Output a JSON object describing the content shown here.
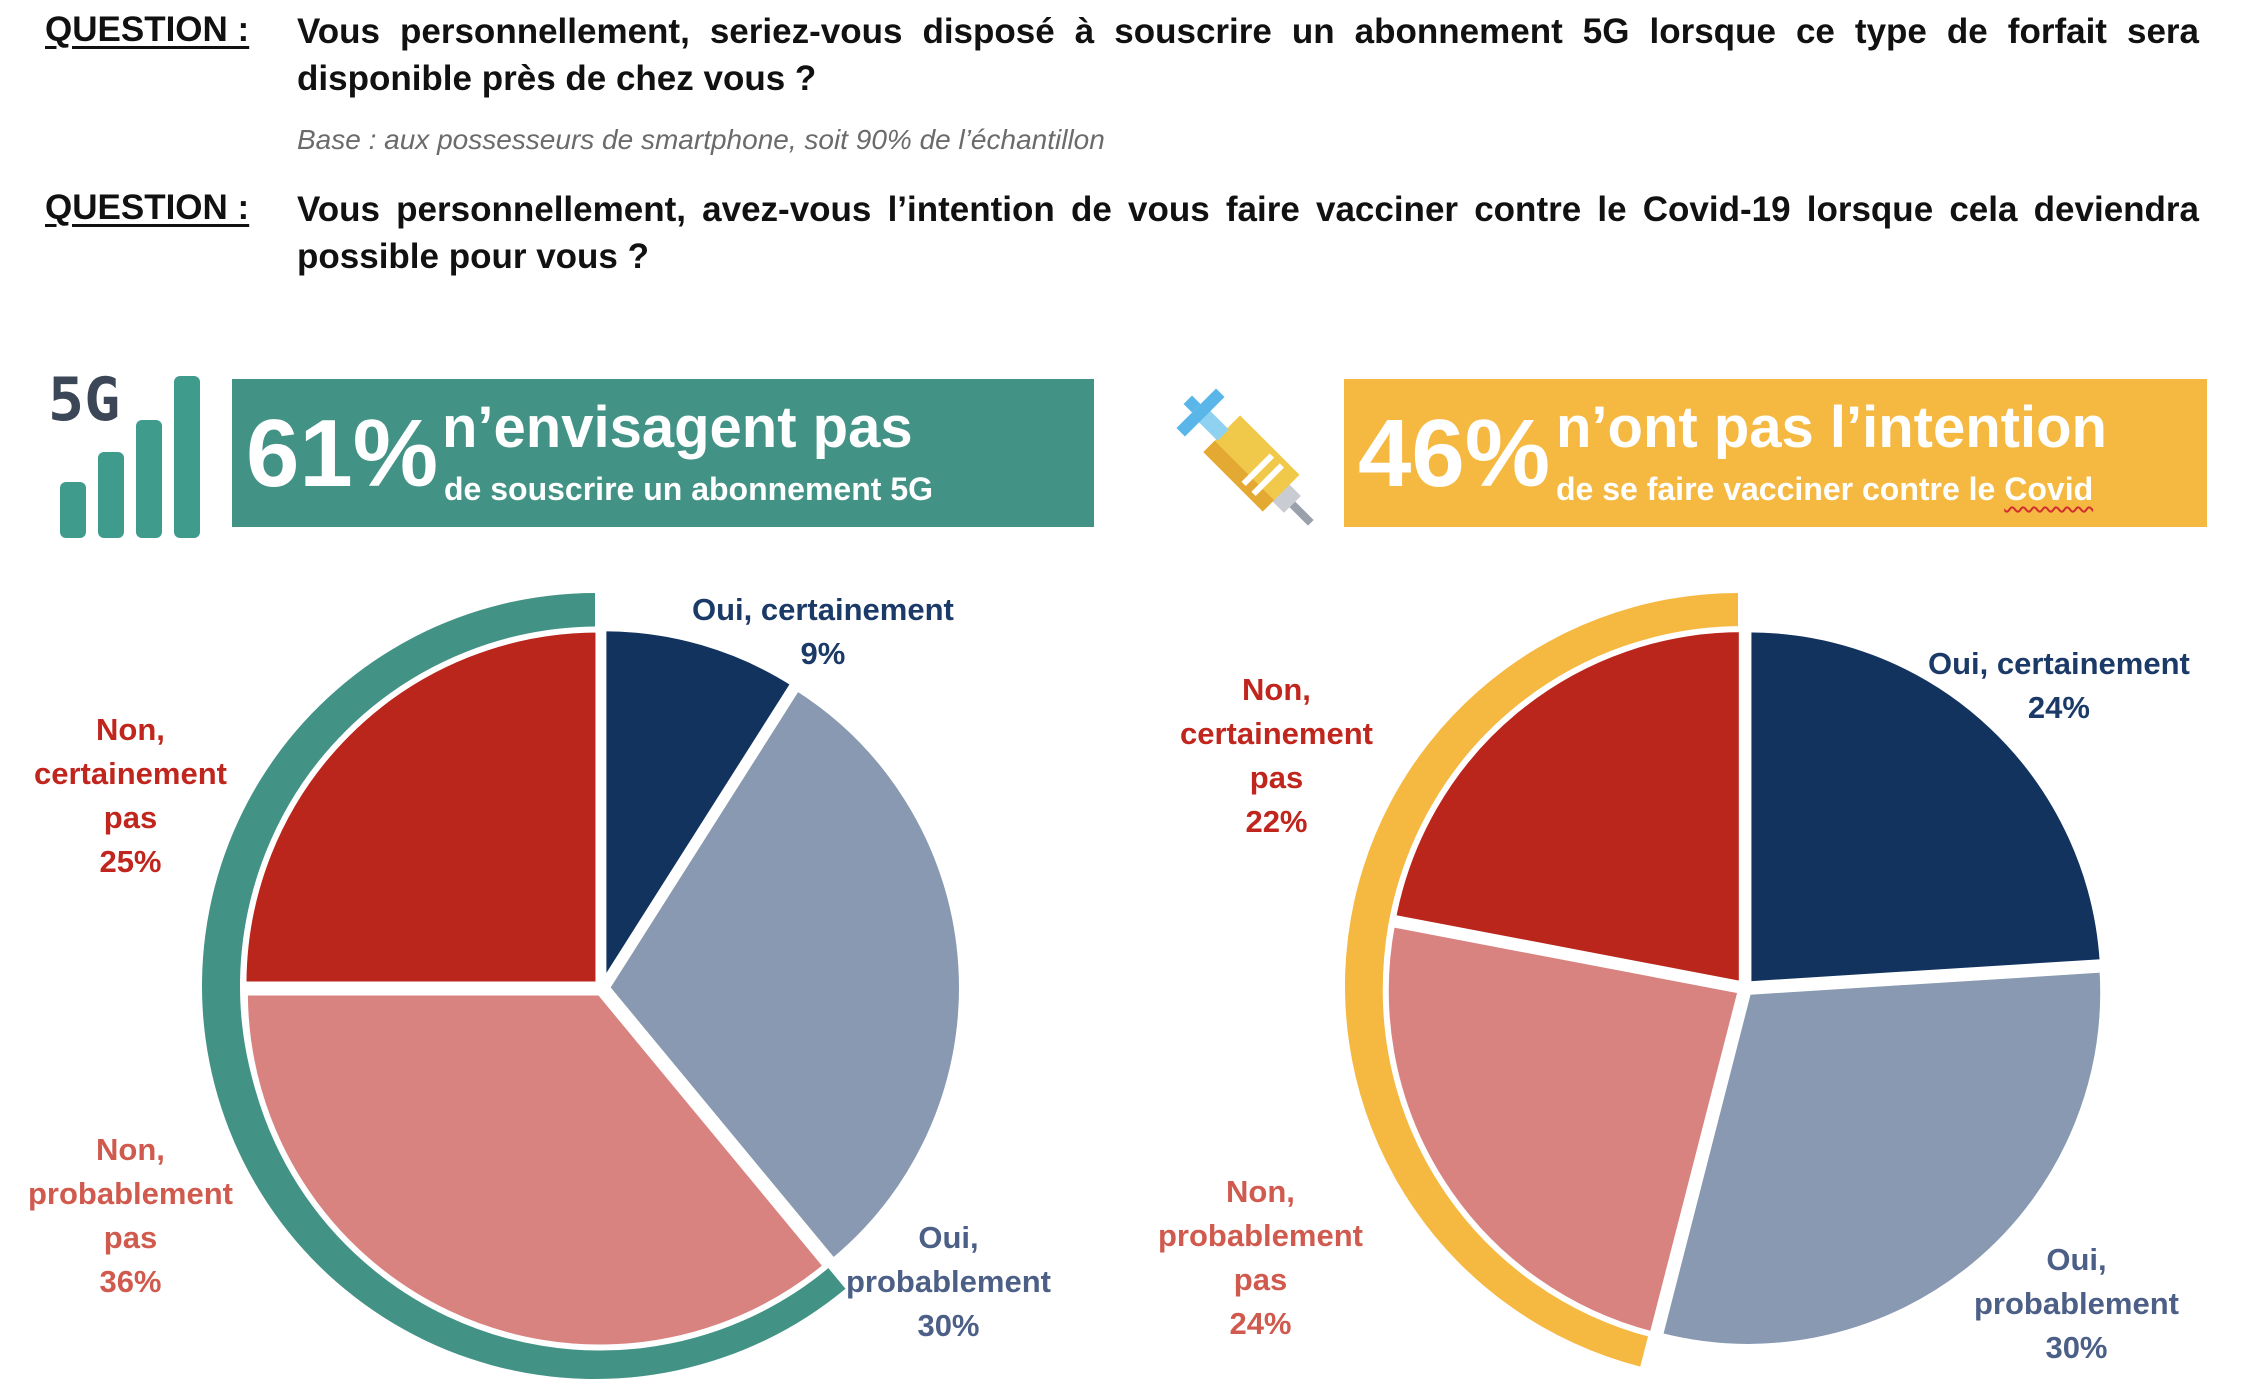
{
  "questions": [
    {
      "label": "QUESTION :",
      "text": "Vous personnellement, seriez-vous disposé à souscrire un abonnement 5G lorsque ce type de forfait sera disponible près de chez vous ?",
      "base": "Base : aux possesseurs de smartphone, soit 90% de l’échantillon"
    },
    {
      "label": "QUESTION :",
      "text": "Vous personnellement, avez-vous l’intention de vous faire vacciner contre le Covid-19 lorsque cela deviendra possible pour vous ?"
    }
  ],
  "banners": {
    "left": {
      "big": "61%",
      "headline": "n’envisagent pas",
      "sub": "de souscrire un abonnement 5G",
      "color": "#429386",
      "icon": "5g-signal-icon",
      "icon_text": "5G"
    },
    "right": {
      "big": "46%",
      "headline": "n’ont pas l’intention",
      "sub_pre": "de se faire vacciner contre le ",
      "sub_word": "Covid",
      "color": "#f5b942",
      "icon": "syringe-icon"
    }
  },
  "colors": {
    "oui_certainement": "#13335f",
    "oui_probablement": "#8899b1",
    "non_certainement": "#ba251c",
    "non_probablement": "#d98380",
    "label_oui_certainement": "#1b3a68",
    "label_oui_probablement": "#4c5f86",
    "label_non_certainement": "#c0261d",
    "label_non_probablement": "#d05a4e"
  },
  "chart_data": [
    {
      "type": "pie",
      "categories": [
        "Oui, certainement",
        "Oui, probablement",
        "Non, probablement pas",
        "Non, certainement pas"
      ],
      "values": [
        9,
        30,
        36,
        25
      ],
      "labels": [
        [
          "Oui, certainement",
          "9%"
        ],
        [
          "Oui,",
          "probablement",
          "30%"
        ],
        [
          "Non,",
          "probablement",
          "pas",
          "36%"
        ],
        [
          "Non,",
          "certainement",
          "pas",
          "25%"
        ]
      ],
      "highlight": {
        "value": 61,
        "color": "#429386"
      }
    },
    {
      "type": "pie",
      "categories": [
        "Oui, certainement",
        "Oui, probablement",
        "Non, probablement pas",
        "Non, certainement pas"
      ],
      "values": [
        24,
        30,
        24,
        22
      ],
      "labels": [
        [
          "Oui, certainement",
          "24%"
        ],
        [
          "Oui,",
          "probablement",
          "30%"
        ],
        [
          "Non,",
          "probablement",
          "pas",
          "24%"
        ],
        [
          "Non,",
          "certainement",
          "pas",
          "22%"
        ]
      ],
      "highlight": {
        "value": 46,
        "color": "#f5b942"
      }
    }
  ]
}
